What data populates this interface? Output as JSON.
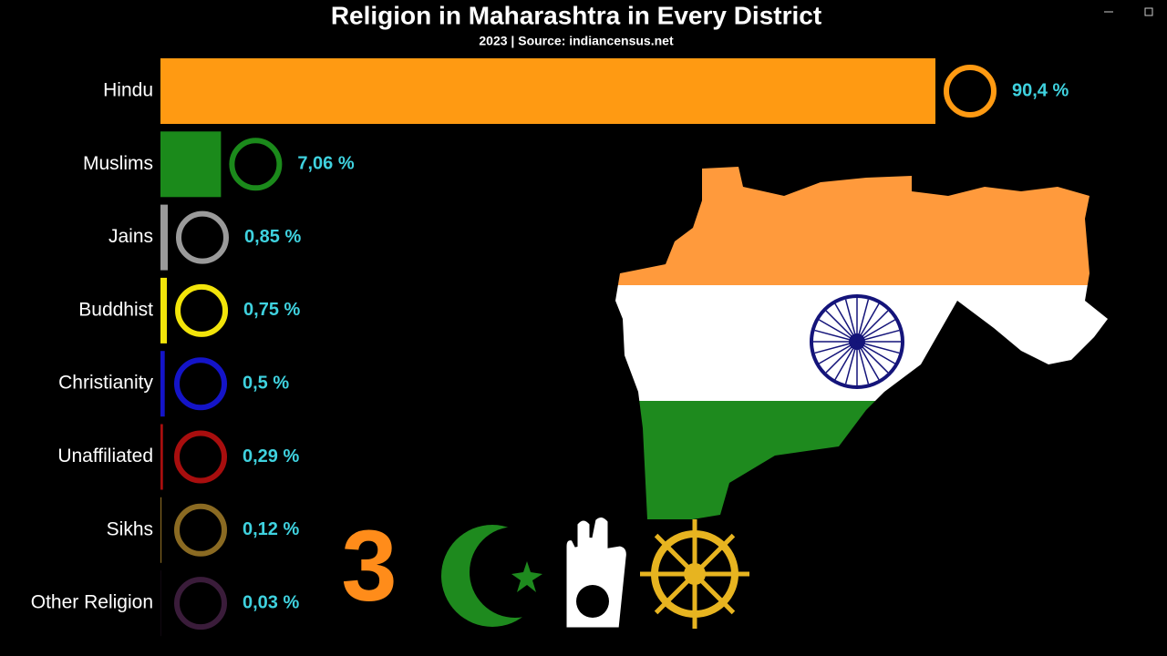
{
  "chart_data": {
    "type": "bar",
    "title": "Religion in Maharashtra in Every District",
    "subtitle": "2023 | Source: indiancensus.net",
    "categories": [
      "Hindu",
      "Muslims",
      "Jains",
      "Buddhist",
      "Christianity",
      "Unaffiliated",
      "Sikhs",
      "Other Religion"
    ],
    "values": [
      90.4,
      7.06,
      0.85,
      0.75,
      0.5,
      0.29,
      0.12,
      0.03
    ],
    "value_labels": [
      "90,4 %",
      "7,06 %",
      "0,85 %",
      "0,75 %",
      "0,5 %",
      "0,29 %",
      "0,12 %",
      "0,03 %"
    ],
    "colors": [
      "#ff9a12",
      "#1b8a1b",
      "#9a9a9a",
      "#f2e40a",
      "#1414c8",
      "#a80e0e",
      "#8a6a22",
      "#3a1c3a"
    ]
  }
}
